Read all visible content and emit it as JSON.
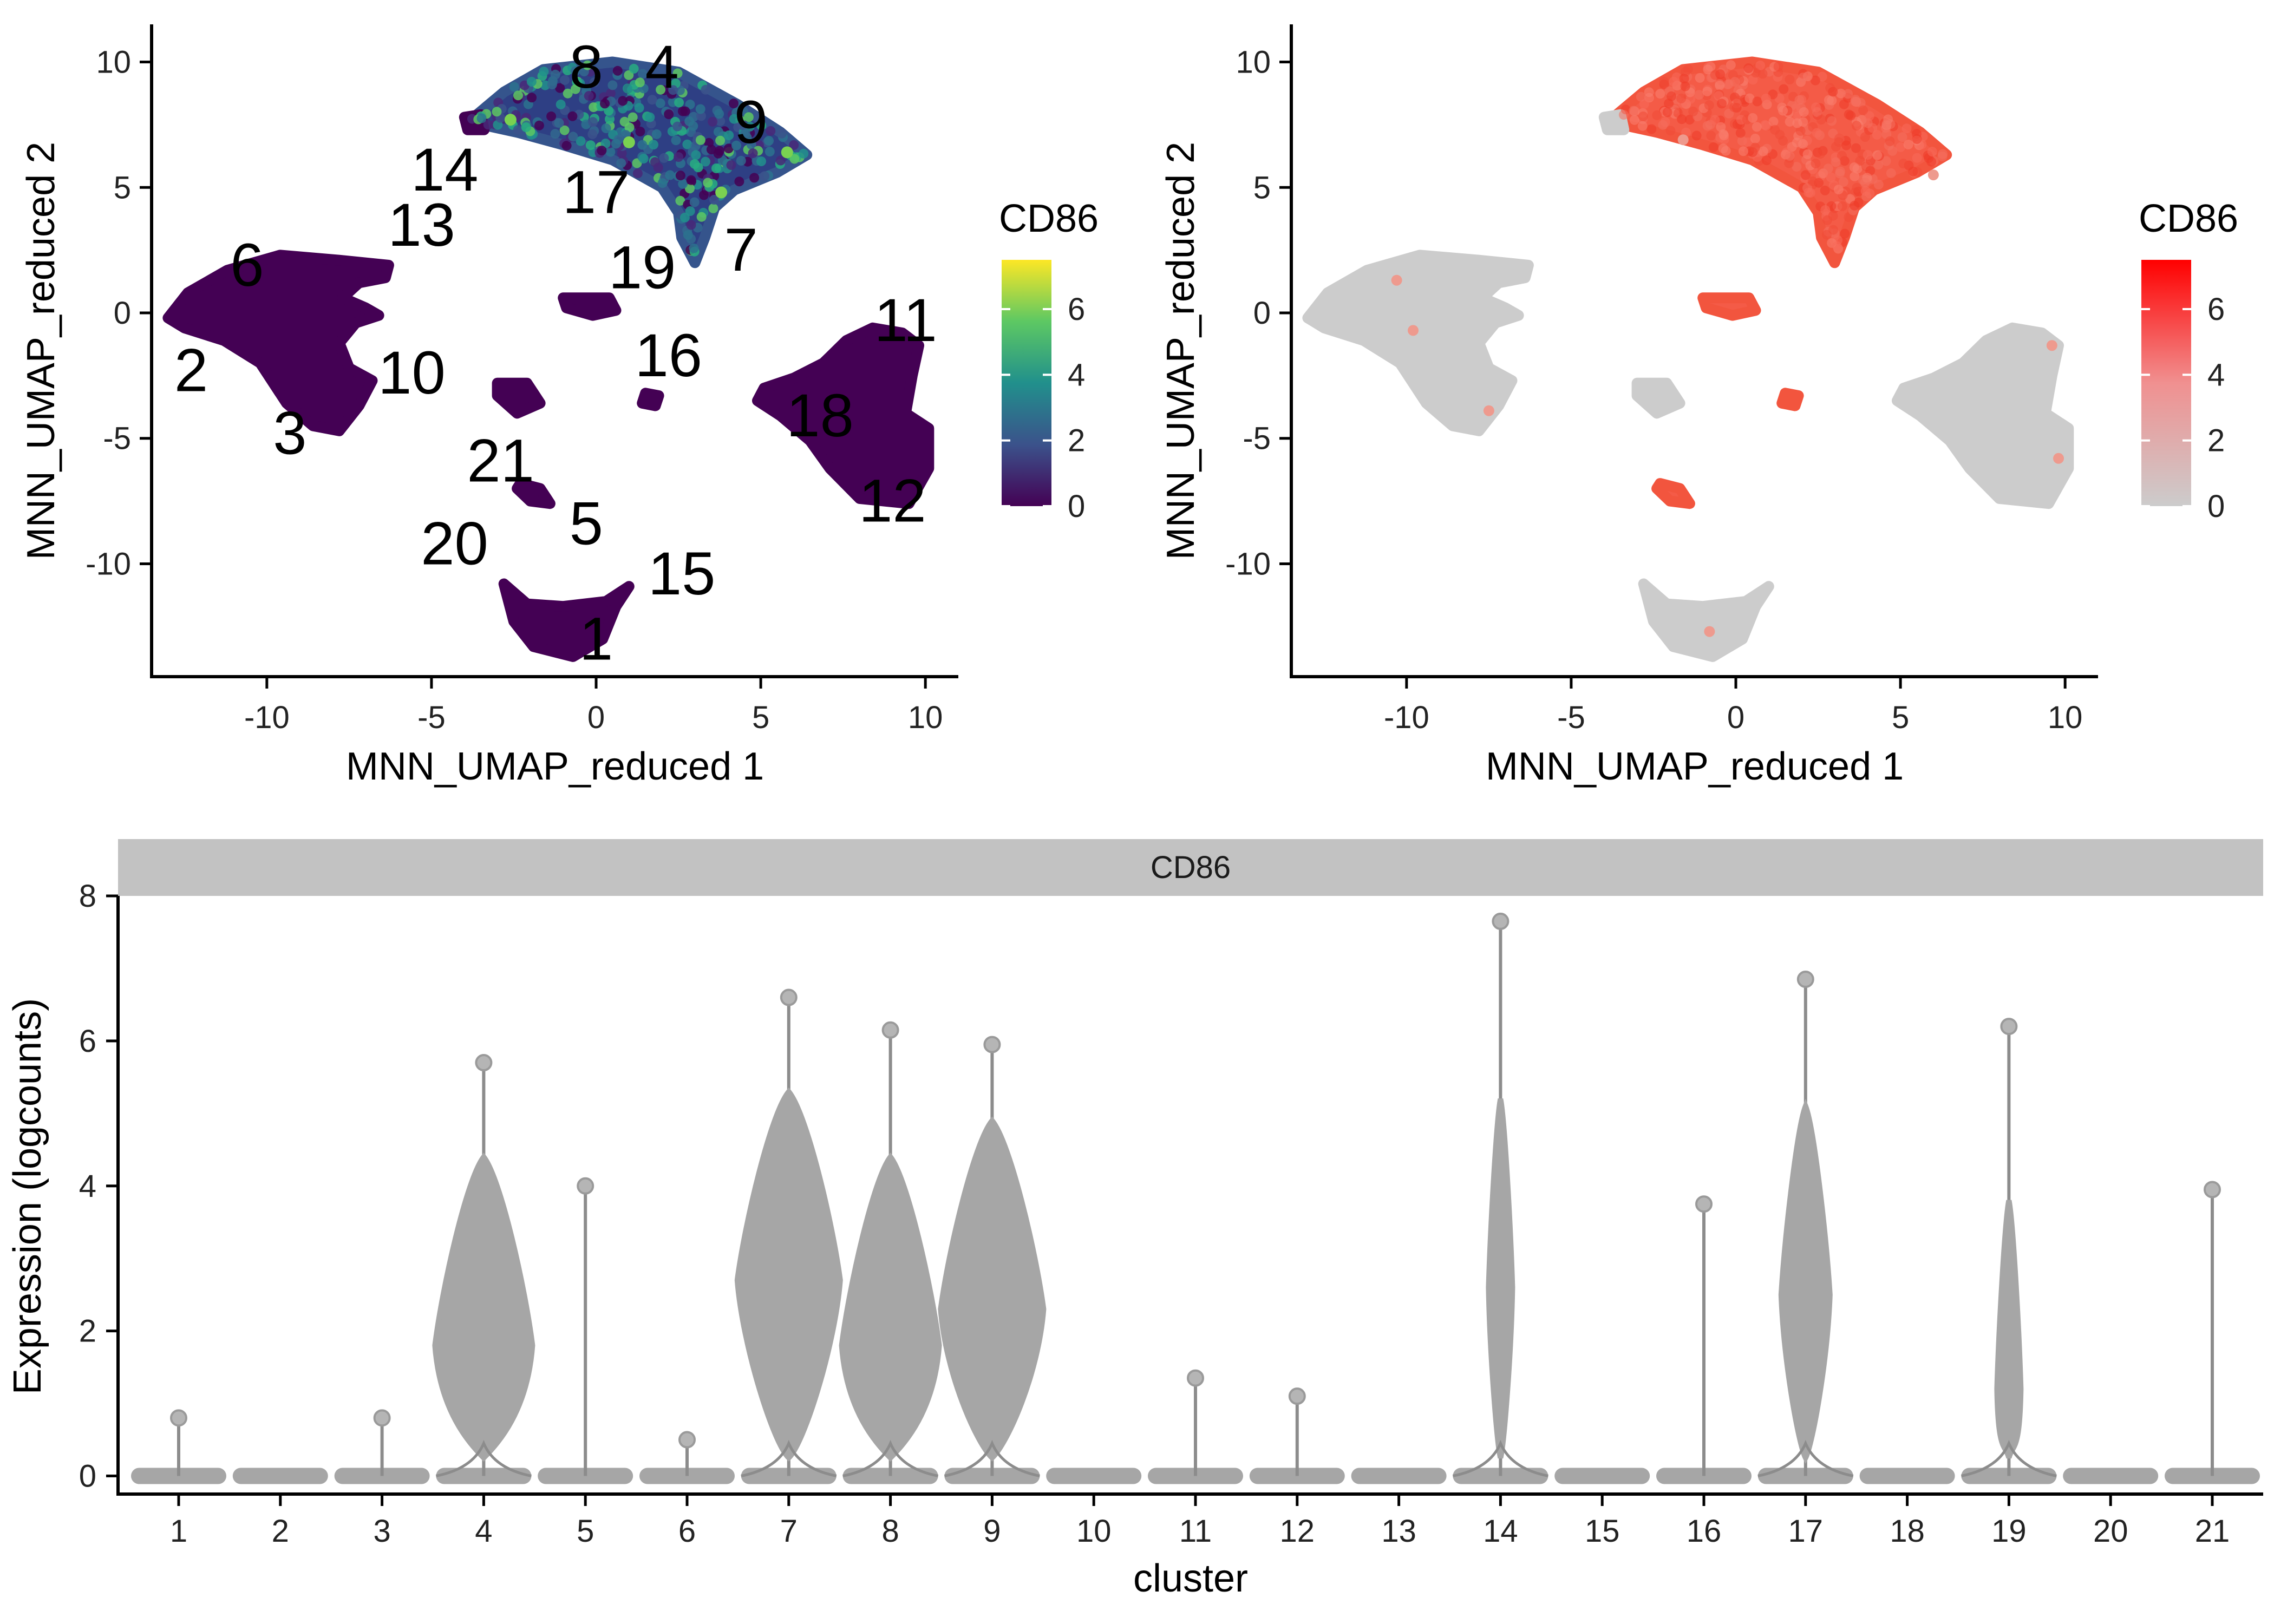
{
  "colors": {
    "viridis_low": "#440154",
    "viridis_mid": "#21908C",
    "viridis_high": "#FDE725",
    "grey_low": "#CCCCCC",
    "red_high": "#FF0000",
    "violin_fill": "#A6A6A6",
    "violin_line": "#8C8C8C",
    "strip_fill": "#C2C2C2"
  },
  "chart_data": [
    {
      "type": "scatter",
      "panel": "umap-viridis",
      "xlabel": "MNN_UMAP_reduced 1",
      "ylabel": "MNN_UMAP_reduced 2",
      "xlim": [
        -13.5,
        11.0
      ],
      "ylim": [
        -14.5,
        11.5
      ],
      "xticks": [
        -10,
        -5,
        0,
        5,
        10
      ],
      "yticks": [
        -10,
        -5,
        0,
        5,
        10
      ],
      "color_scale": "viridis",
      "legend": {
        "title": "CD86",
        "position": "right",
        "ticks": [
          0,
          2,
          4,
          6
        ],
        "range": [
          0,
          7.5
        ]
      },
      "cluster_labels": [
        {
          "text": "1",
          "x": 0.0,
          "y": -13.0
        },
        {
          "text": "2",
          "x": -12.3,
          "y": -2.3
        },
        {
          "text": "3",
          "x": -9.3,
          "y": -4.8
        },
        {
          "text": "4",
          "x": 2.0,
          "y": 9.8
        },
        {
          "text": "5",
          "x": -0.3,
          "y": -8.4
        },
        {
          "text": "6",
          "x": -10.6,
          "y": 1.9
        },
        {
          "text": "7",
          "x": 4.4,
          "y": 2.5
        },
        {
          "text": "8",
          "x": -0.3,
          "y": 9.8
        },
        {
          "text": "9",
          "x": 4.7,
          "y": 7.6
        },
        {
          "text": "10",
          "x": -5.6,
          "y": -2.4
        },
        {
          "text": "11",
          "x": 9.4,
          "y": -0.3
        },
        {
          "text": "12",
          "x": 9.0,
          "y": -7.5
        },
        {
          "text": "13",
          "x": -5.3,
          "y": 3.5
        },
        {
          "text": "14",
          "x": -4.6,
          "y": 5.7
        },
        {
          "text": "15",
          "x": 2.6,
          "y": -10.4
        },
        {
          "text": "16",
          "x": 2.2,
          "y": -1.7
        },
        {
          "text": "17",
          "x": 0.0,
          "y": 4.8
        },
        {
          "text": "18",
          "x": 6.8,
          "y": -4.1
        },
        {
          "text": "19",
          "x": 1.4,
          "y": 1.8
        },
        {
          "text": "20",
          "x": -4.3,
          "y": -9.2
        },
        {
          "text": "21",
          "x": -2.9,
          "y": -5.9
        }
      ]
    },
    {
      "type": "scatter",
      "panel": "umap-red",
      "xlabel": "MNN_UMAP_reduced 1",
      "ylabel": "MNN_UMAP_reduced 2",
      "xlim": [
        -13.5,
        11.0
      ],
      "ylim": [
        -14.5,
        11.5
      ],
      "xticks": [
        -10,
        -5,
        0,
        5,
        10
      ],
      "yticks": [
        -10,
        -5,
        0,
        5,
        10
      ],
      "color_scale": "grey-to-red",
      "legend": {
        "title": "CD86",
        "position": "right",
        "ticks": [
          0,
          2,
          4,
          6
        ],
        "range": [
          0,
          7.5
        ]
      }
    },
    {
      "type": "violin",
      "panel": "violin",
      "strip_title": "CD86",
      "xlabel": "cluster",
      "ylabel": "Expression (logcounts)",
      "ylim": [
        -0.25,
        8.0
      ],
      "yticks": [
        0,
        2,
        4,
        6,
        8
      ],
      "categories": [
        "1",
        "2",
        "3",
        "4",
        "5",
        "6",
        "7",
        "8",
        "9",
        "10",
        "11",
        "12",
        "13",
        "14",
        "15",
        "16",
        "17",
        "18",
        "19",
        "20",
        "21"
      ],
      "max_values": [
        0.8,
        0.0,
        0.8,
        5.7,
        4.0,
        0.5,
        6.6,
        6.15,
        5.95,
        0.0,
        1.35,
        1.1,
        0.0,
        7.65,
        0.0,
        3.75,
        6.85,
        0.0,
        6.2,
        0.0,
        3.95
      ],
      "median_values": [
        0,
        0,
        0,
        1.8,
        0,
        0,
        2.7,
        1.8,
        2.3,
        0,
        0,
        0,
        0,
        2.6,
        0,
        0,
        2.5,
        0,
        1.2,
        0,
        0
      ]
    }
  ]
}
